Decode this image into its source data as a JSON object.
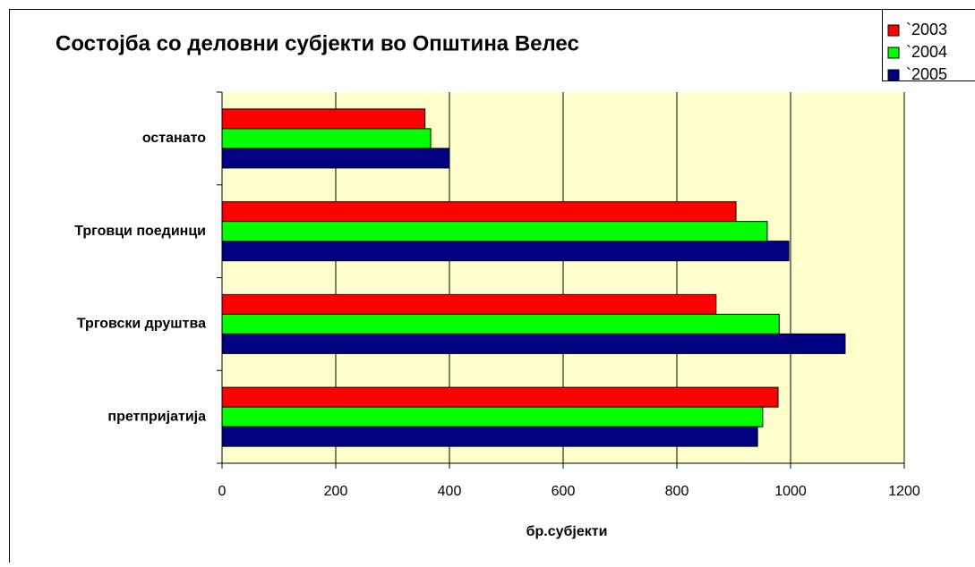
{
  "chart_data": {
    "type": "barh",
    "title": "Состојба со деловни субјекти во Општина Велес",
    "xlabel": "бр.субјекти",
    "categories": [
      "останато",
      "Трговци поединци",
      "Трговски друштва",
      "претпријатија"
    ],
    "series": [
      {
        "name": "`2003",
        "color": "#ff0000",
        "values": [
          357,
          904,
          869,
          978
        ]
      },
      {
        "name": "`2004",
        "color": "#00ff00",
        "values": [
          367,
          959,
          980,
          951
        ]
      },
      {
        "name": "`2005",
        "color": "#000080",
        "values": [
          400,
          997,
          1096,
          942
        ]
      }
    ],
    "xlim": [
      0,
      1200
    ],
    "xticks": [
      0,
      200,
      400,
      600,
      800,
      1000,
      1200
    ],
    "grid": true,
    "legend": "top-right",
    "plot_background": "#ffffcc"
  }
}
